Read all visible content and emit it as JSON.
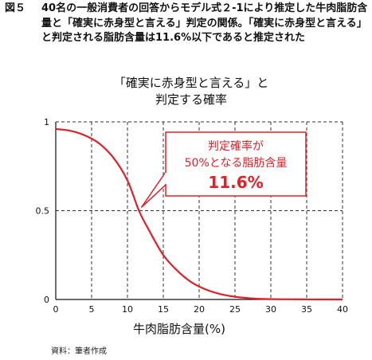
{
  "caption": {
    "figure_label": "図５",
    "text": "40名の一般消費者の回答からモデル式２-1により推定した牛肉脂肪含量と「確実に赤身型と言える」判定の関係。「確実に赤身型と言える」と判定される脂肪含量は11.6%以下であると推定された"
  },
  "chart_data": {
    "type": "line",
    "title_line1": "「確実に赤身型と言える」と",
    "title_line2": "判定する確率",
    "xlabel": "牛肉脂肪含量(%)",
    "ylabel": "",
    "xlim": [
      0,
      40
    ],
    "ylim": [
      0,
      1
    ],
    "x_ticks": [
      0,
      5,
      10,
      15,
      20,
      25,
      30,
      35,
      40
    ],
    "y_ticks": [
      0,
      0.5,
      1
    ],
    "y_tick_labels": [
      "0",
      "0.5",
      "1"
    ],
    "grid": true,
    "series": [
      {
        "color": "#e0202a",
        "x": [
          0,
          2,
          4,
          6,
          8,
          10,
          11.6,
          13,
          15,
          17,
          19,
          21,
          23,
          25,
          27,
          29,
          31,
          35,
          40
        ],
        "y": [
          0.96,
          0.95,
          0.925,
          0.88,
          0.8,
          0.67,
          0.5,
          0.39,
          0.25,
          0.16,
          0.095,
          0.055,
          0.03,
          0.015,
          0.007,
          0.003,
          0.0015,
          0.0003,
          0.0
        ]
      }
    ],
    "annotation": {
      "line1": "判定確率が",
      "line2": "50%となる脂肪含量",
      "value": "11.6%",
      "point": [
        11.6,
        0.5
      ],
      "color": "#e0202a"
    }
  },
  "source": "資料：筆者作成"
}
